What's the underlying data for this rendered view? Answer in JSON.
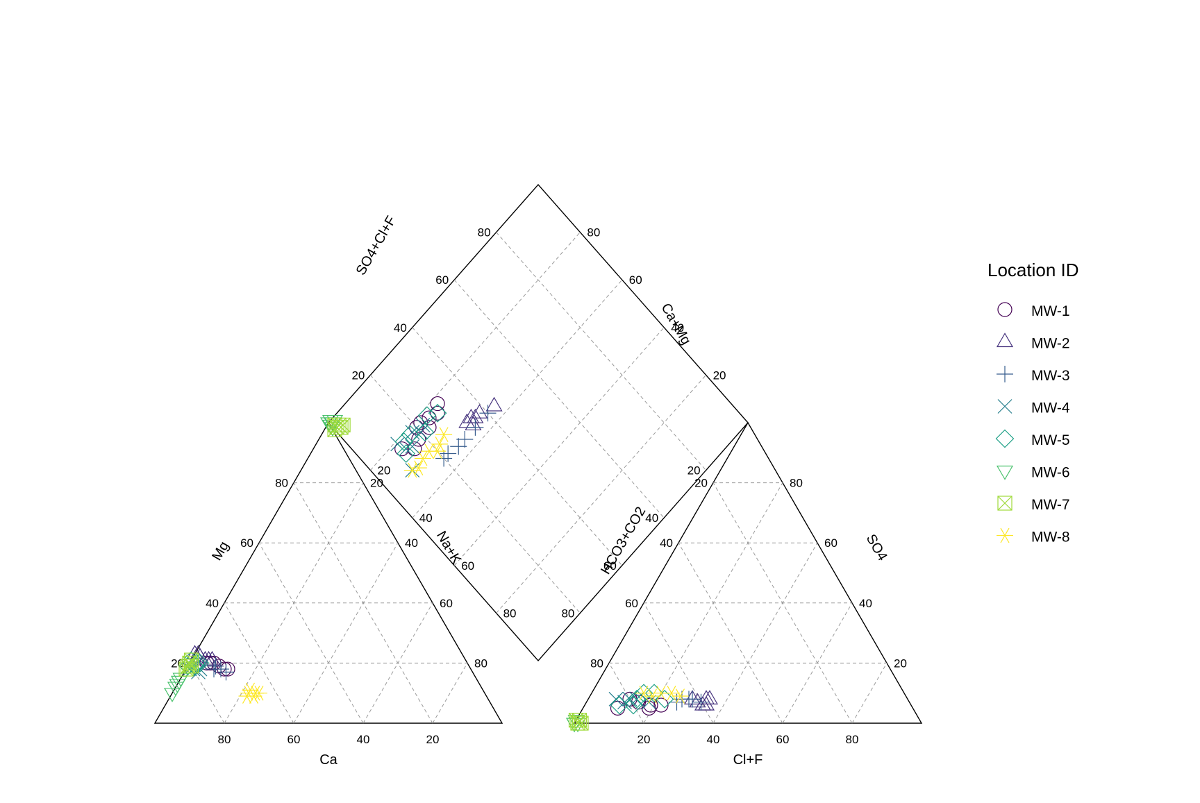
{
  "chart_data": {
    "type": "scatter",
    "subtype": "piper-diagram",
    "colors": {
      "MW-1": "#440154",
      "MW-2": "#46337E",
      "MW-3": "#365C8D",
      "MW-4": "#277F8E",
      "MW-5": "#1FA187",
      "MW-6": "#4AC16D",
      "MW-7": "#9FDA3A",
      "MW-8": "#FDE725"
    },
    "legend": {
      "title": "Location ID",
      "position": "right",
      "entries": [
        {
          "label": "MW-1",
          "symbol": "circle"
        },
        {
          "label": "MW-2",
          "symbol": "triangle-up"
        },
        {
          "label": "MW-3",
          "symbol": "plus"
        },
        {
          "label": "MW-4",
          "symbol": "cross"
        },
        {
          "label": "MW-5",
          "symbol": "diamond"
        },
        {
          "label": "MW-6",
          "symbol": "triangle-down"
        },
        {
          "label": "MW-7",
          "symbol": "square-x"
        },
        {
          "label": "MW-8",
          "symbol": "asterisk"
        }
      ]
    },
    "cation_triangle": {
      "labels": {
        "bottom": "Ca",
        "left": "Mg",
        "right": "Na+K"
      },
      "bottom_ticks": [
        "80",
        "60",
        "40",
        "20"
      ],
      "left_ticks": [
        "20",
        "40",
        "60",
        "80"
      ],
      "right_ticks": [
        "80",
        "60",
        "40",
        "20"
      ]
    },
    "anion_triangle": {
      "labels": {
        "bottom": "Cl+F",
        "left": "HCO3+CO2",
        "right": "SO4"
      },
      "bottom_ticks": [
        "20",
        "40",
        "60",
        "80"
      ],
      "left_ticks": [
        "80",
        "60",
        "40",
        "20"
      ],
      "right_ticks": [
        "20",
        "40",
        "60",
        "80"
      ]
    },
    "diamond": {
      "labels": {
        "upper_left": "SO4+Cl+F",
        "upper_right": "Ca+Mg"
      },
      "upper_left_ticks": [
        "20",
        "40",
        "60",
        "80"
      ],
      "upper_right_ticks": [
        "80",
        "60",
        "40",
        "20"
      ],
      "lower_left_ticks": [
        "20",
        "40",
        "60",
        "80"
      ],
      "lower_right_ticks": [
        "20",
        "40",
        "60",
        "80"
      ]
    },
    "series": [
      {
        "name": "MW-1",
        "cations": [
          [
            74,
            20,
            6
          ],
          [
            70,
            18,
            12
          ],
          [
            72,
            19,
            9
          ],
          [
            73,
            20,
            7
          ],
          [
            71,
            18,
            11
          ],
          [
            75,
            20,
            5
          ]
        ],
        "anions": [
          [
            72,
            6,
            22
          ],
          [
            85,
            5,
            10
          ],
          [
            78,
            7,
            15
          ],
          [
            75,
            6,
            19
          ],
          [
            80,
            8,
            12
          ],
          [
            76,
            5,
            19
          ]
        ],
        "diamond": [
          [
            22,
            78
          ],
          [
            28,
            76
          ],
          [
            18,
            75
          ],
          [
            25,
            77
          ],
          [
            15,
            74
          ],
          [
            20,
            78
          ],
          [
            30,
            78
          ],
          [
            12,
            77
          ],
          [
            23,
            75
          ]
        ]
      },
      {
        "name": "MW-2",
        "cations": [
          [
            76,
            22,
            2
          ],
          [
            75,
            21,
            4
          ],
          [
            77,
            23,
            0
          ],
          [
            74,
            21,
            5
          ],
          [
            76,
            23,
            1
          ],
          [
            73,
            21,
            6
          ]
        ],
        "anions": [
          [
            62,
            8,
            30
          ],
          [
            60,
            6,
            34
          ],
          [
            58,
            8,
            34
          ],
          [
            61,
            7,
            32
          ],
          [
            59,
            6,
            35
          ],
          [
            57,
            8,
            35
          ]
        ],
        "diamond": [
          [
            35,
            67
          ],
          [
            38,
            66
          ],
          [
            43,
            64
          ],
          [
            33,
            67
          ],
          [
            36,
            66
          ],
          [
            34,
            65
          ]
        ]
      },
      {
        "name": "MW-3",
        "cations": [
          [
            72,
            18,
            10
          ],
          [
            73,
            19,
            8
          ],
          [
            71,
            17,
            12
          ],
          [
            74,
            18,
            8
          ]
        ],
        "anions": [
          [
            62,
            8,
            30
          ],
          [
            65,
            8,
            27
          ],
          [
            60,
            7,
            33
          ],
          [
            63,
            8,
            29
          ],
          [
            67,
            7,
            26
          ]
        ],
        "diamond": [
          [
            34,
            64
          ],
          [
            29,
            64
          ],
          [
            26,
            64
          ],
          [
            22,
            65
          ],
          [
            20,
            65
          ],
          [
            40,
            64
          ]
        ]
      },
      {
        "name": "MW-4",
        "cations": [
          [
            80,
            18,
            2
          ],
          [
            79,
            17,
            4
          ],
          [
            81,
            18,
            1
          ],
          [
            78,
            18,
            4
          ],
          [
            80,
            20,
            0
          ]
        ],
        "anions": [
          [
            80,
            8,
            12
          ],
          [
            78,
            8,
            14
          ],
          [
            82,
            7,
            11
          ],
          [
            75,
            7,
            18
          ],
          [
            84,
            8,
            8
          ]
        ],
        "diamond": [
          [
            18,
            78
          ],
          [
            20,
            76
          ],
          [
            15,
            75
          ],
          [
            22,
            77
          ],
          [
            13,
            76
          ],
          [
            10,
            70
          ],
          [
            12,
            79
          ]
        ]
      },
      {
        "name": "MW-5",
        "cations": [
          [
            78,
            20,
            2
          ],
          [
            80,
            21,
            0
          ],
          [
            79,
            19,
            2
          ],
          [
            81,
            19,
            0
          ],
          [
            77,
            20,
            3
          ]
        ],
        "anions": [
          [
            72,
            10,
            18
          ],
          [
            78,
            8,
            14
          ],
          [
            75,
            10,
            15
          ],
          [
            80,
            6,
            14
          ],
          [
            70,
            8,
            22
          ],
          [
            84,
            6,
            10
          ]
        ],
        "diamond": [
          [
            28,
            76
          ],
          [
            21,
            75
          ],
          [
            17,
            78
          ],
          [
            12,
            75
          ],
          [
            25,
            78
          ],
          [
            14,
            78
          ]
        ]
      },
      {
        "name": "MW-6",
        "cations": [
          [
            87,
            13,
            0
          ],
          [
            85,
            15,
            0
          ],
          [
            88,
            12,
            0
          ],
          [
            86,
            14,
            0
          ],
          [
            90,
            10,
            0
          ]
        ],
        "anions": [
          [
            100,
            0,
            0
          ],
          [
            99,
            0,
            1
          ],
          [
            100,
            0,
            0
          ],
          [
            99,
            1,
            0
          ]
        ],
        "diamond": [
          [
            0,
            100
          ],
          [
            1,
            99
          ],
          [
            0,
            98
          ],
          [
            2,
            99
          ],
          [
            1,
            100
          ],
          [
            0,
            99
          ]
        ]
      },
      {
        "name": "MW-7",
        "cations": [
          [
            80,
            20,
            0
          ],
          [
            81,
            19,
            0
          ],
          [
            79,
            21,
            0
          ],
          [
            80,
            19,
            1
          ],
          [
            82,
            18,
            0
          ]
        ],
        "anions": [
          [
            99,
            0,
            1
          ],
          [
            98,
            1,
            1
          ],
          [
            99,
            1,
            0
          ],
          [
            98,
            0,
            2
          ]
        ],
        "diamond": [
          [
            1,
            97
          ],
          [
            2,
            97
          ],
          [
            3,
            96
          ],
          [
            0,
            97
          ],
          [
            1,
            98
          ],
          [
            2,
            96
          ]
        ]
      },
      {
        "name": "MW-8",
        "cations": [
          [
            68,
            10,
            22
          ],
          [
            66,
            10,
            24
          ],
          [
            67,
            11,
            22
          ],
          [
            69,
            9,
            22
          ],
          [
            65,
            10,
            25
          ],
          [
            67,
            9,
            24
          ]
        ],
        "anions": [
          [
            70,
            10,
            20
          ],
          [
            67,
            10,
            23
          ],
          [
            73,
            9,
            18
          ],
          [
            65,
            9,
            26
          ],
          [
            75,
            10,
            15
          ]
        ],
        "diamond": [
          [
            25,
            70
          ],
          [
            20,
            68
          ],
          [
            15,
            70
          ],
          [
            22,
            69
          ],
          [
            10,
            70
          ],
          [
            18,
            70
          ],
          [
            12,
            69
          ]
        ]
      }
    ]
  }
}
